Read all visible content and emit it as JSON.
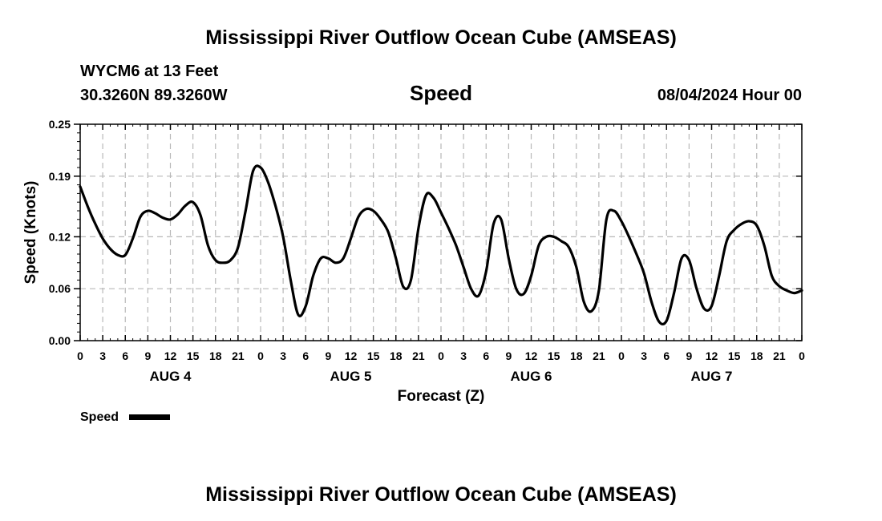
{
  "header": {
    "title": "Mississippi River Outflow Ocean Cube (AMSEAS)",
    "station": "WYCM6 at 13 Feet",
    "location": "30.3260N  89.3260W",
    "panel_title": "Speed",
    "date": "08/04/2024 Hour 00"
  },
  "footer": {
    "title": "Mississippi River Outflow Ocean Cube (AMSEAS)"
  },
  "chart_data": {
    "type": "line",
    "title": "Speed",
    "xlabel": "Forecast (Z)",
    "ylabel": "Speed (Knots)",
    "x_unit": "forecast hour",
    "xlim": [
      0,
      96
    ],
    "ylim": [
      0,
      0.25
    ],
    "y_ticks": [
      0.0,
      0.06,
      0.12,
      0.19,
      0.25
    ],
    "y_tick_labels": [
      "0.00",
      "0.06",
      "0.12",
      "0.19",
      "0.25"
    ],
    "x_ticks": [
      0,
      3,
      6,
      9,
      12,
      15,
      18,
      21,
      24,
      27,
      30,
      33,
      36,
      39,
      42,
      45,
      48,
      51,
      54,
      57,
      60,
      63,
      66,
      69,
      72,
      75,
      78,
      81,
      84,
      87,
      90,
      93,
      96
    ],
    "x_tick_labels": [
      "0",
      "3",
      "6",
      "9",
      "12",
      "15",
      "18",
      "21",
      "0",
      "3",
      "6",
      "9",
      "12",
      "15",
      "18",
      "21",
      "0",
      "3",
      "6",
      "9",
      "12",
      "15",
      "18",
      "21",
      "0",
      "3",
      "6",
      "9",
      "12",
      "15",
      "18",
      "21",
      "0"
    ],
    "day_labels": [
      {
        "label": "AUG 4",
        "x": 12
      },
      {
        "label": "AUG 5",
        "x": 36
      },
      {
        "label": "AUG 6",
        "x": 60
      },
      {
        "label": "AUG 7",
        "x": 84
      }
    ],
    "grid": true,
    "legend": "bottom-left",
    "series": [
      {
        "name": "Speed",
        "color": "#000000",
        "x": [
          0,
          1,
          2,
          3,
          4,
          5,
          6,
          7,
          8,
          9,
          10,
          11,
          12,
          13,
          14,
          15,
          16,
          17,
          18,
          19,
          20,
          21,
          22,
          23,
          24,
          25,
          26,
          27,
          28,
          29,
          30,
          31,
          32,
          33,
          34,
          35,
          36,
          37,
          38,
          39,
          40,
          41,
          42,
          43,
          44,
          45,
          46,
          47,
          48,
          49,
          50,
          51,
          52,
          53,
          54,
          55,
          56,
          57,
          58,
          59,
          60,
          61,
          62,
          63,
          64,
          65,
          66,
          67,
          68,
          69,
          70,
          71,
          72,
          73,
          74,
          75,
          76,
          77,
          78,
          79,
          80,
          81,
          82,
          83,
          84,
          85,
          86,
          87,
          88,
          89,
          90,
          91,
          92,
          93,
          94,
          95,
          96
        ],
        "y": [
          0.178,
          0.155,
          0.135,
          0.118,
          0.106,
          0.099,
          0.099,
          0.118,
          0.143,
          0.15,
          0.147,
          0.142,
          0.14,
          0.146,
          0.156,
          0.16,
          0.145,
          0.11,
          0.093,
          0.09,
          0.093,
          0.108,
          0.15,
          0.196,
          0.2,
          0.183,
          0.155,
          0.12,
          0.07,
          0.03,
          0.04,
          0.075,
          0.095,
          0.095,
          0.09,
          0.095,
          0.118,
          0.143,
          0.152,
          0.15,
          0.14,
          0.125,
          0.095,
          0.062,
          0.07,
          0.13,
          0.168,
          0.165,
          0.148,
          0.13,
          0.11,
          0.085,
          0.06,
          0.052,
          0.08,
          0.135,
          0.14,
          0.095,
          0.06,
          0.054,
          0.075,
          0.11,
          0.12,
          0.12,
          0.115,
          0.108,
          0.085,
          0.045,
          0.034,
          0.058,
          0.14,
          0.15,
          0.138,
          0.12,
          0.1,
          0.078,
          0.045,
          0.022,
          0.023,
          0.055,
          0.095,
          0.093,
          0.06,
          0.037,
          0.04,
          0.075,
          0.115,
          0.128,
          0.135,
          0.138,
          0.133,
          0.11,
          0.075,
          0.063,
          0.058,
          0.055,
          0.058
        ]
      }
    ]
  }
}
